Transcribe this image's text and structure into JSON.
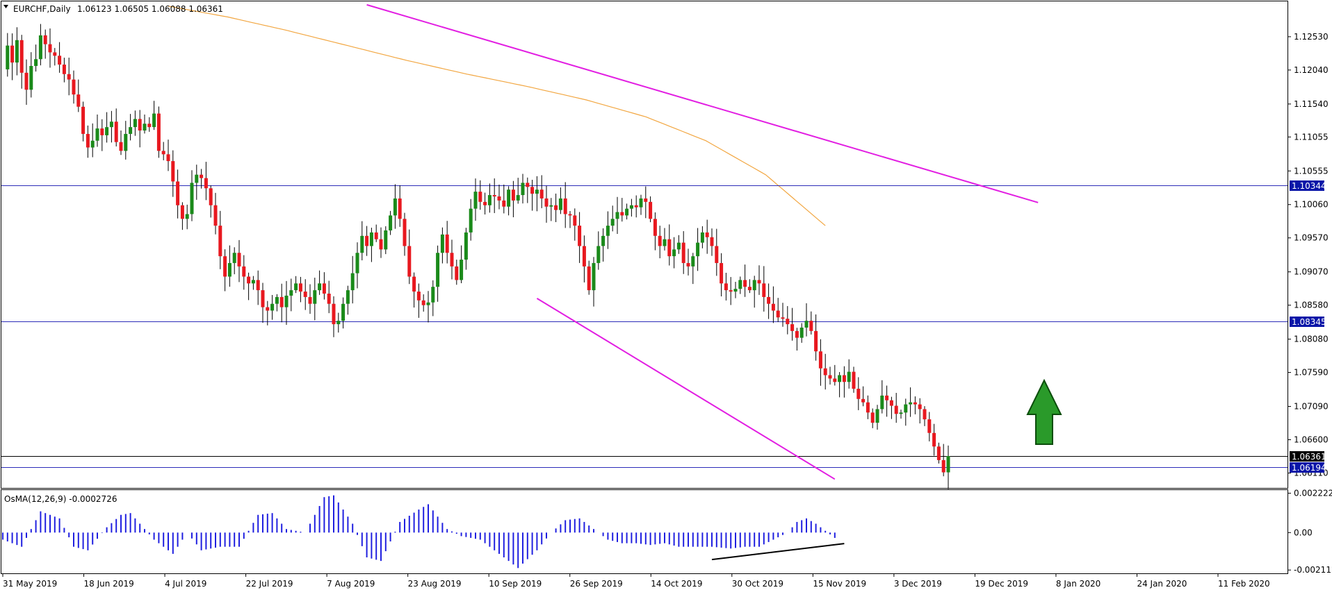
{
  "header": {
    "symbol": "EURCHF,Daily",
    "ohlc": "1.06123 1.06505 1.06088 1.06361"
  },
  "osma_label": "OsMA(12,26,9) -0.0002726",
  "colors": {
    "bull": "#1a8a1a",
    "bear": "#e8181f",
    "wick": "#000000",
    "ma": "#f2a640",
    "trendline": "#e21ee2",
    "level": "#2b2bb8",
    "osma": "#1f1fe0",
    "arrow_fill": "#2a9a2a",
    "arrow_stroke": "#0b4d0b",
    "tag_blue": "#0a16a8",
    "tag_black": "#000000",
    "frame": "#000000"
  },
  "chart_data": [
    {
      "type": "candlestick",
      "title": "EURCHF,Daily",
      "ylim": [
        1.0588,
        1.1305
      ],
      "y_ticks": [
        "1.12530",
        "1.12040",
        "1.11540",
        "1.11055",
        "1.10555",
        "1.10060",
        "1.09570",
        "1.09070",
        "1.08580",
        "1.08080",
        "1.07590",
        "1.07090",
        "1.06600",
        "1.06110"
      ],
      "x_labels": [
        "31 May 2019",
        "18 Jun 2019",
        "4 Jul 2019",
        "22 Jul 2019",
        "7 Aug 2019",
        "23 Aug 2019",
        "10 Sep 2019",
        "26 Sep 2019",
        "14 Oct 2019",
        "30 Oct 2019",
        "15 Nov 2019",
        "3 Dec 2019",
        "19 Dec 2019",
        "8 Jan 2020",
        "24 Jan 2020",
        "11 Feb 2020"
      ],
      "price_path": [
        1.1205,
        1.124,
        1.1215,
        1.1248,
        1.12,
        1.1175,
        1.121,
        1.122,
        1.1255,
        1.1242,
        1.123,
        1.1225,
        1.1212,
        1.1198,
        1.119,
        1.1168,
        1.115,
        1.111,
        1.109,
        1.11,
        1.1118,
        1.1108,
        1.112,
        1.1128,
        1.1098,
        1.1085,
        1.111,
        1.112,
        1.1132,
        1.1115,
        1.1125,
        1.112,
        1.114,
        1.1085,
        1.108,
        1.107,
        1.104,
        1.1005,
        1.0985,
        1.0992,
        1.1038,
        1.105,
        1.1045,
        1.103,
        1.1005,
        1.0975,
        1.093,
        1.09,
        1.092,
        1.0935,
        1.0915,
        1.09,
        1.089,
        1.0895,
        1.088,
        1.0855,
        1.085,
        1.086,
        1.087,
        1.0855,
        1.0872,
        1.088,
        1.089,
        1.0878,
        1.087,
        1.086,
        1.088,
        1.089,
        1.0875,
        1.086,
        1.083,
        1.0835,
        1.086,
        1.088,
        1.0905,
        1.0935,
        1.096,
        1.0945,
        1.0965,
        1.0955,
        1.094,
        1.0968,
        1.099,
        1.1015,
        1.0985,
        1.0945,
        1.09,
        1.0878,
        1.0865,
        1.0858,
        1.0862,
        1.0885,
        1.0935,
        1.0962,
        1.0935,
        1.0915,
        1.0895,
        1.0925,
        1.0965,
        1.1,
        1.1025,
        1.101,
        1.1005,
        1.102,
        1.1018,
        1.1012,
        1.1003,
        1.1028,
        1.1012,
        1.102,
        1.1038,
        1.1032,
        1.1022,
        1.1028,
        1.1015,
        1.1003,
        1.1005,
        1.0998,
        1.1015,
        1.0992,
        1.099,
        1.0975,
        1.0945,
        1.0915,
        1.088,
        1.092,
        1.0945,
        1.096,
        1.0975,
        1.0985,
        1.0995,
        1.099,
        1.1,
        1.1005,
        1.1002,
        1.1015,
        1.101,
        1.0985,
        1.096,
        1.0945,
        1.0955,
        1.093,
        1.094,
        1.095,
        1.092,
        1.0915,
        1.093,
        1.095,
        1.0965,
        1.0958,
        1.0945,
        1.092,
        1.089,
        1.088,
        1.0878,
        1.0882,
        1.0895,
        1.0885,
        1.088,
        1.0895,
        1.089,
        1.087,
        1.086,
        1.085,
        1.084,
        1.0838,
        1.083,
        1.082,
        1.081,
        1.0825,
        1.0835,
        1.082,
        1.079,
        1.0765,
        1.0755,
        1.075,
        1.0745,
        1.0755,
        1.0745,
        1.076,
        1.0735,
        1.072,
        1.0715,
        1.07,
        1.0685,
        1.0705,
        1.0725,
        1.0718,
        1.071,
        1.0698,
        1.07,
        1.0712,
        1.0715,
        1.0712,
        1.0705,
        1.069,
        1.067,
        1.065,
        1.063,
        1.0612,
        1.0636
      ],
      "ma_line": {
        "from_bar": 35,
        "to_bar": 174,
        "values": [
          1.1298,
          1.1282,
          1.1262,
          1.124,
          1.1218,
          1.1198,
          1.118,
          1.116,
          1.1135,
          1.11,
          1.105,
          1.0975
        ]
      },
      "levels": [
        {
          "price": 1.10344,
          "label": "1.10344",
          "tag_style": "blue"
        },
        {
          "price": 1.08345,
          "label": "1.08345",
          "tag_style": "blue"
        },
        {
          "price": 1.06361,
          "label": "1.06361",
          "tag_style": "black"
        },
        {
          "price": 1.06194,
          "label": "1.06194",
          "tag_style": "blue"
        }
      ],
      "trendlines": [
        {
          "name": "upper",
          "from": {
            "bar": 77,
            "price": 1.13
          },
          "to": {
            "bar": 219,
            "price": 1.1009
          }
        },
        {
          "name": "lower",
          "from": {
            "bar": 113,
            "price": 1.0868
          },
          "to": {
            "bar": 176,
            "price": 1.0602
          }
        }
      ],
      "annotation": "green up arrow"
    },
    {
      "type": "bar",
      "title": "OsMA(12,26,9) -0.0002726",
      "ylim": [
        -0.0023,
        0.0024
      ],
      "y_ticks": [
        "0.00222222",
        "0.00",
        "-0.00211255"
      ],
      "last_value": -0.0002726,
      "control_points": [
        [
          0,
          -0.0004
        ],
        [
          4,
          -0.0008
        ],
        [
          8,
          0.0012
        ],
        [
          12,
          0.0008
        ],
        [
          15,
          -0.0008
        ],
        [
          18,
          -0.001
        ],
        [
          22,
          0.0003
        ],
        [
          25,
          0.001
        ],
        [
          27,
          0.0011
        ],
        [
          30,
          0.0002
        ],
        [
          32,
          -0.0004
        ],
        [
          36,
          -0.0012
        ],
        [
          39,
          0.0
        ],
        [
          42,
          -0.001
        ],
        [
          46,
          -0.0008
        ],
        [
          50,
          -0.0008
        ],
        [
          54,
          0.001
        ],
        [
          57,
          0.0011
        ],
        [
          60,
          0.0002
        ],
        [
          64,
          0.0
        ],
        [
          68,
          0.002
        ],
        [
          70,
          0.0021
        ],
        [
          74,
          0.0005
        ],
        [
          77,
          -0.0014
        ],
        [
          80,
          -0.0016
        ],
        [
          84,
          0.0006
        ],
        [
          88,
          0.0013
        ],
        [
          90,
          0.0016
        ],
        [
          94,
          0.0002
        ],
        [
          97,
          -0.0002
        ],
        [
          101,
          -0.0004
        ],
        [
          105,
          -0.0012
        ],
        [
          109,
          -0.002
        ],
        [
          113,
          -0.001
        ],
        [
          116,
          0.0
        ],
        [
          119,
          0.0007
        ],
        [
          122,
          0.0008
        ],
        [
          125,
          0.0002
        ],
        [
          128,
          -0.0004
        ],
        [
          131,
          -0.0006
        ],
        [
          134,
          -0.0006
        ],
        [
          137,
          -0.0007
        ],
        [
          140,
          -0.0006
        ],
        [
          143,
          -0.0008
        ],
        [
          147,
          -0.0008
        ],
        [
          150,
          -0.0008
        ],
        [
          154,
          -0.0009
        ],
        [
          157,
          -0.0008
        ],
        [
          160,
          -0.0008
        ],
        [
          163,
          -0.0004
        ],
        [
          166,
          0.0
        ],
        [
          168,
          0.0006
        ],
        [
          170,
          0.0008
        ],
        [
          172,
          0.0005
        ],
        [
          174,
          0.0001
        ],
        [
          176,
          -0.0003
        ]
      ],
      "divergence_line": {
        "from": {
          "bar": 150,
          "value": -0.00152
        },
        "to": {
          "bar": 178,
          "value": -0.00062
        }
      }
    }
  ]
}
